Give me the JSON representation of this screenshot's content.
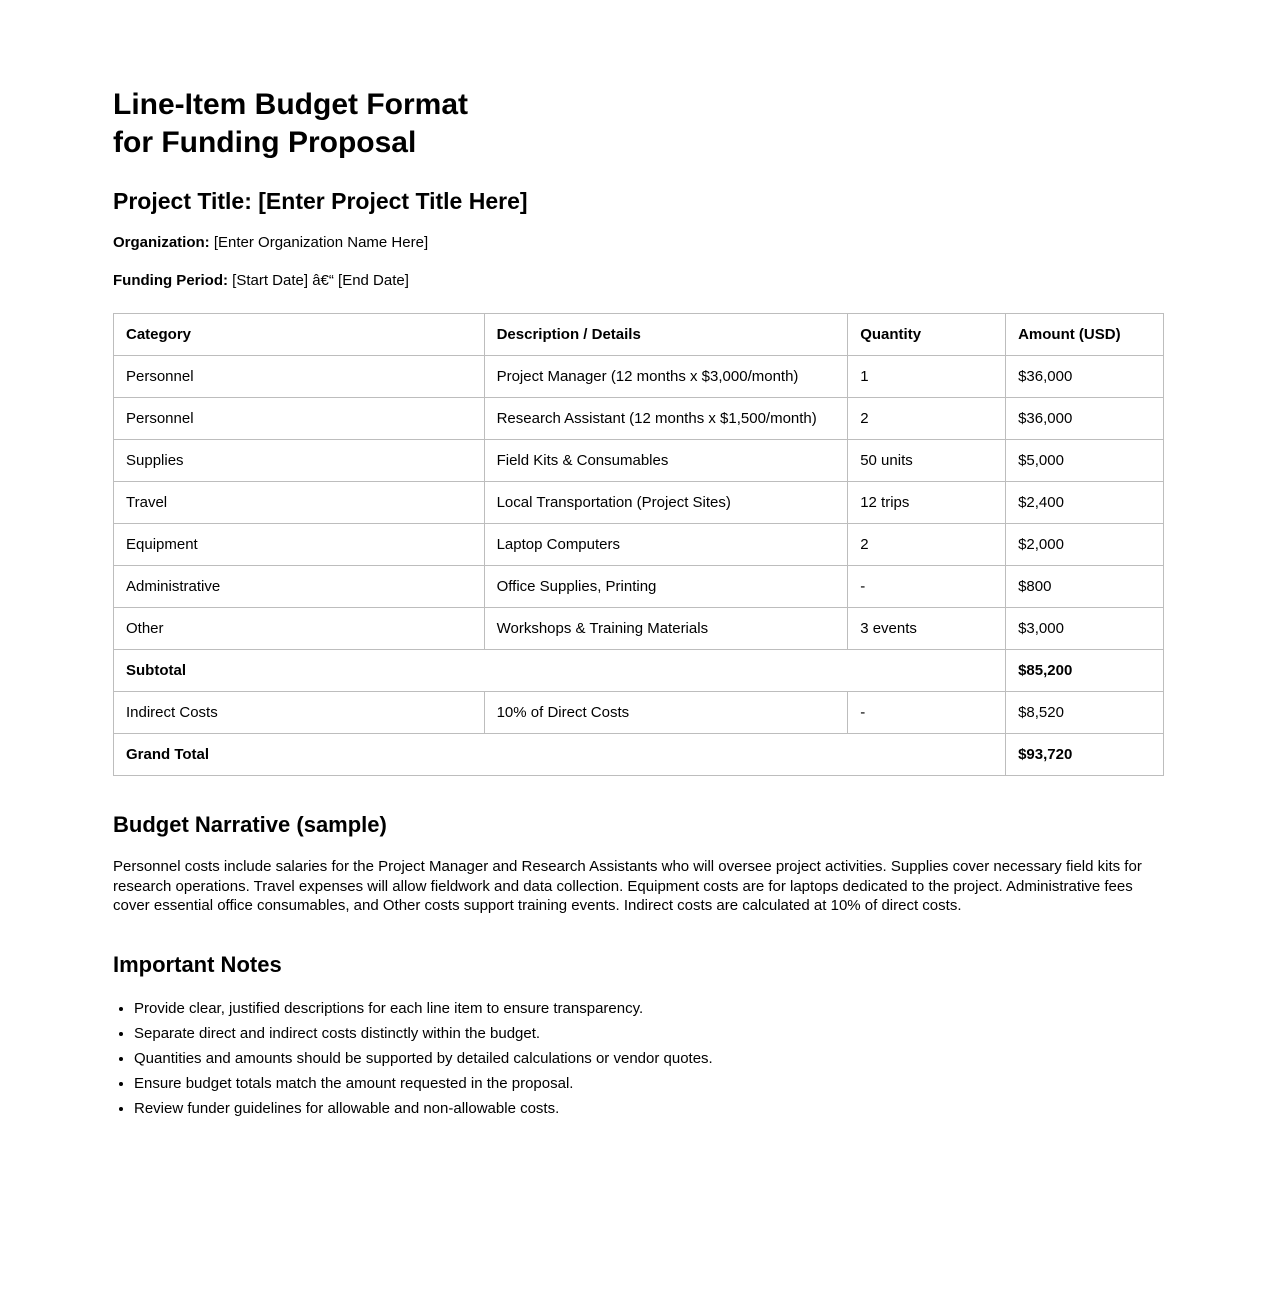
{
  "header": {
    "title_line1": "Line-Item Budget Format",
    "title_line2": "for Funding Proposal",
    "project_title": "Project Title: [Enter Project Title Here]",
    "organization_label": "Organization:",
    "organization_value": "[Enter Organization Name Here]",
    "funding_period_label": "Funding Period:",
    "funding_period_value": "[Start Date] â€“ [End Date]"
  },
  "table": {
    "headers": [
      "Category",
      "Description / Details",
      "Quantity",
      "Amount (USD)"
    ],
    "rows": [
      {
        "type": "item",
        "category": "Personnel",
        "description": "Project Manager (12 months x $3,000/month)",
        "quantity": "1",
        "amount": "$36,000"
      },
      {
        "type": "item",
        "category": "Personnel",
        "description": "Research Assistant (12 months x $1,500/month)",
        "quantity": "2",
        "amount": "$36,000"
      },
      {
        "type": "item",
        "category": "Supplies",
        "description": "Field Kits & Consumables",
        "quantity": "50 units",
        "amount": "$5,000"
      },
      {
        "type": "item",
        "category": "Travel",
        "description": "Local Transportation (Project Sites)",
        "quantity": "12 trips",
        "amount": "$2,400"
      },
      {
        "type": "item",
        "category": "Equipment",
        "description": "Laptop Computers",
        "quantity": "2",
        "amount": "$2,000"
      },
      {
        "type": "item",
        "category": "Administrative",
        "description": "Office Supplies, Printing",
        "quantity": "-",
        "amount": "$800"
      },
      {
        "type": "item",
        "category": "Other",
        "description": "Workshops & Training Materials",
        "quantity": "3 events",
        "amount": "$3,000"
      },
      {
        "type": "subtotal",
        "label": "Subtotal",
        "amount": "$85,200"
      },
      {
        "type": "item",
        "category": "Indirect Costs",
        "description": "10% of Direct Costs",
        "quantity": "-",
        "amount": "$8,520"
      },
      {
        "type": "grand-total",
        "label": "Grand Total",
        "amount": "$93,720"
      }
    ]
  },
  "narrative": {
    "heading": "Budget Narrative (sample)",
    "text": "Personnel costs include salaries for the Project Manager and Research Assistants who will oversee project activities. Supplies cover necessary field kits for research operations. Travel expenses will allow fieldwork and data collection. Equipment costs are for laptops dedicated to the project. Administrative fees cover essential office consumables, and Other costs support training events. Indirect costs are calculated at 10% of direct costs."
  },
  "notes": {
    "heading": "Important Notes",
    "items": [
      "Provide clear, justified descriptions for each line item to ensure transparency.",
      "Separate direct and indirect costs distinctly within the budget.",
      "Quantities and amounts should be supported by detailed calculations or vendor quotes.",
      "Ensure budget totals match the amount requested in the proposal.",
      "Review funder guidelines for allowable and non-allowable costs."
    ]
  }
}
